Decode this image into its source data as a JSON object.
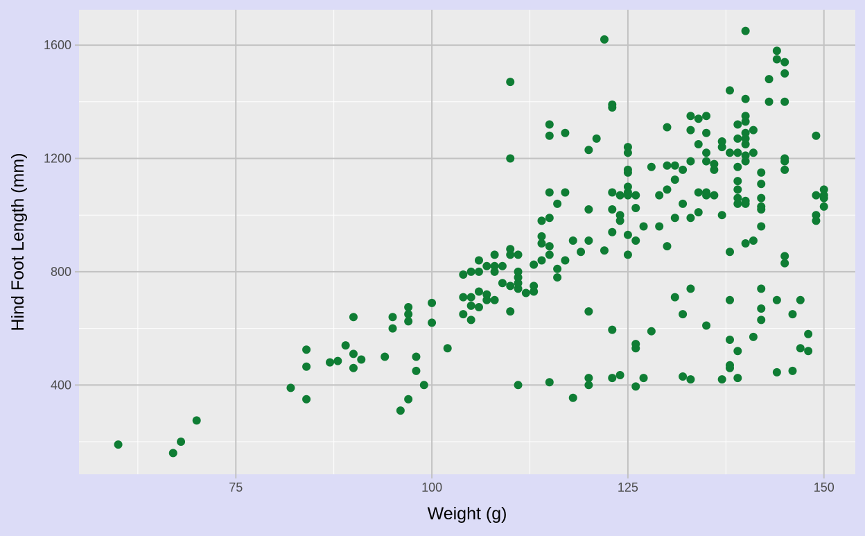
{
  "colors": {
    "page_background": "#dcdcf7",
    "panel_background": "#ebebeb",
    "grid_major": "#c2c2c2",
    "grid_minor": "#ffffff",
    "point": "#0f7d34",
    "tick_text": "#4d4d4d",
    "axis_title": "#000000"
  },
  "chart_data": {
    "type": "scatter",
    "title": "",
    "xlabel": "Weight (g)",
    "ylabel": "Hind Foot Length (mm)",
    "xlim": [
      55,
      154
    ],
    "ylim": [
      85,
      1725
    ],
    "x_ticks": [
      75,
      100,
      125,
      150
    ],
    "x_tick_labels": [
      "75",
      "100",
      "125",
      "150"
    ],
    "y_ticks": [
      400,
      800,
      1200,
      1600
    ],
    "y_tick_labels": [
      "400",
      "800",
      "1200",
      "1600"
    ],
    "x_minor": [
      62.5,
      87.5,
      112.5,
      137.5
    ],
    "y_minor": [
      200,
      600,
      1000,
      1400
    ],
    "grid": true,
    "legend": "none",
    "points": [
      [
        60,
        190
      ],
      [
        67,
        160
      ],
      [
        68,
        200
      ],
      [
        70,
        275
      ],
      [
        82,
        390
      ],
      [
        84,
        350
      ],
      [
        84,
        465
      ],
      [
        84,
        525
      ],
      [
        87,
        480
      ],
      [
        88,
        485
      ],
      [
        89,
        540
      ],
      [
        90,
        460
      ],
      [
        90,
        510
      ],
      [
        90,
        640
      ],
      [
        91,
        490
      ],
      [
        94,
        500
      ],
      [
        95,
        600
      ],
      [
        95,
        640
      ],
      [
        96,
        310
      ],
      [
        97,
        350
      ],
      [
        97,
        625
      ],
      [
        97,
        650
      ],
      [
        97,
        675
      ],
      [
        98,
        450
      ],
      [
        98,
        500
      ],
      [
        99,
        400
      ],
      [
        100,
        620
      ],
      [
        100,
        690
      ],
      [
        102,
        530
      ],
      [
        104,
        650
      ],
      [
        104,
        710
      ],
      [
        104,
        790
      ],
      [
        105,
        630
      ],
      [
        105,
        680
      ],
      [
        105,
        710
      ],
      [
        105,
        800
      ],
      [
        106,
        675
      ],
      [
        106,
        730
      ],
      [
        106,
        800
      ],
      [
        106,
        840
      ],
      [
        107,
        700
      ],
      [
        107,
        720
      ],
      [
        107,
        820
      ],
      [
        108,
        700
      ],
      [
        108,
        800
      ],
      [
        108,
        820
      ],
      [
        108,
        860
      ],
      [
        109,
        760
      ],
      [
        109,
        820
      ],
      [
        110,
        660
      ],
      [
        110,
        750
      ],
      [
        110,
        860
      ],
      [
        110,
        880
      ],
      [
        110,
        1200
      ],
      [
        110,
        1470
      ],
      [
        111,
        400
      ],
      [
        111,
        740
      ],
      [
        111,
        760
      ],
      [
        111,
        780
      ],
      [
        111,
        800
      ],
      [
        111,
        860
      ],
      [
        112,
        725
      ],
      [
        113,
        730
      ],
      [
        113,
        750
      ],
      [
        113,
        825
      ],
      [
        114,
        840
      ],
      [
        114,
        900
      ],
      [
        114,
        925
      ],
      [
        114,
        980
      ],
      [
        115,
        410
      ],
      [
        115,
        860
      ],
      [
        115,
        890
      ],
      [
        115,
        990
      ],
      [
        115,
        1080
      ],
      [
        115,
        1280
      ],
      [
        115,
        1320
      ],
      [
        116,
        780
      ],
      [
        116,
        810
      ],
      [
        116,
        1040
      ],
      [
        117,
        840
      ],
      [
        117,
        1080
      ],
      [
        117,
        1290
      ],
      [
        118,
        355
      ],
      [
        118,
        910
      ],
      [
        119,
        870
      ],
      [
        120,
        400
      ],
      [
        120,
        425
      ],
      [
        120,
        660
      ],
      [
        120,
        910
      ],
      [
        120,
        1020
      ],
      [
        120,
        1230
      ],
      [
        121,
        1270
      ],
      [
        122,
        875
      ],
      [
        122,
        1620
      ],
      [
        123,
        425
      ],
      [
        123,
        595
      ],
      [
        123,
        940
      ],
      [
        123,
        1020
      ],
      [
        123,
        1080
      ],
      [
        123,
        1380
      ],
      [
        123,
        1390
      ],
      [
        124,
        435
      ],
      [
        124,
        980
      ],
      [
        124,
        1000
      ],
      [
        124,
        1070
      ],
      [
        125,
        860
      ],
      [
        125,
        930
      ],
      [
        125,
        1070
      ],
      [
        125,
        1080
      ],
      [
        125,
        1100
      ],
      [
        125,
        1150
      ],
      [
        125,
        1160
      ],
      [
        125,
        1220
      ],
      [
        125,
        1240
      ],
      [
        126,
        395
      ],
      [
        126,
        530
      ],
      [
        126,
        545
      ],
      [
        126,
        910
      ],
      [
        126,
        1025
      ],
      [
        126,
        1070
      ],
      [
        127,
        425
      ],
      [
        127,
        960
      ],
      [
        128,
        590
      ],
      [
        128,
        1170
      ],
      [
        129,
        960
      ],
      [
        129,
        1070
      ],
      [
        130,
        890
      ],
      [
        130,
        1090
      ],
      [
        130,
        1175
      ],
      [
        130,
        1310
      ],
      [
        131,
        710
      ],
      [
        131,
        990
      ],
      [
        131,
        1125
      ],
      [
        131,
        1175
      ],
      [
        132,
        430
      ],
      [
        132,
        650
      ],
      [
        132,
        1040
      ],
      [
        132,
        1160
      ],
      [
        133,
        420
      ],
      [
        133,
        740
      ],
      [
        133,
        990
      ],
      [
        133,
        1190
      ],
      [
        133,
        1300
      ],
      [
        133,
        1350
      ],
      [
        134,
        1010
      ],
      [
        134,
        1080
      ],
      [
        134,
        1250
      ],
      [
        134,
        1340
      ],
      [
        135,
        610
      ],
      [
        135,
        1070
      ],
      [
        135,
        1080
      ],
      [
        135,
        1190
      ],
      [
        135,
        1220
      ],
      [
        135,
        1290
      ],
      [
        135,
        1350
      ],
      [
        136,
        1070
      ],
      [
        136,
        1160
      ],
      [
        136,
        1180
      ],
      [
        137,
        420
      ],
      [
        137,
        1000
      ],
      [
        137,
        1240
      ],
      [
        137,
        1260
      ],
      [
        138,
        460
      ],
      [
        138,
        470
      ],
      [
        138,
        560
      ],
      [
        138,
        700
      ],
      [
        138,
        870
      ],
      [
        138,
        1220
      ],
      [
        138,
        1440
      ],
      [
        139,
        425
      ],
      [
        139,
        520
      ],
      [
        139,
        1040
      ],
      [
        139,
        1060
      ],
      [
        139,
        1090
      ],
      [
        139,
        1120
      ],
      [
        139,
        1170
      ],
      [
        139,
        1220
      ],
      [
        139,
        1270
      ],
      [
        139,
        1320
      ],
      [
        140,
        900
      ],
      [
        140,
        1040
      ],
      [
        140,
        1050
      ],
      [
        140,
        1190
      ],
      [
        140,
        1210
      ],
      [
        140,
        1250
      ],
      [
        140,
        1270
      ],
      [
        140,
        1290
      ],
      [
        140,
        1330
      ],
      [
        140,
        1350
      ],
      [
        140,
        1410
      ],
      [
        140,
        1650
      ],
      [
        141,
        570
      ],
      [
        141,
        910
      ],
      [
        141,
        1220
      ],
      [
        141,
        1300
      ],
      [
        142,
        630
      ],
      [
        142,
        670
      ],
      [
        142,
        740
      ],
      [
        142,
        960
      ],
      [
        142,
        1020
      ],
      [
        142,
        1030
      ],
      [
        142,
        1060
      ],
      [
        142,
        1110
      ],
      [
        142,
        1150
      ],
      [
        143,
        1400
      ],
      [
        143,
        1480
      ],
      [
        144,
        445
      ],
      [
        144,
        700
      ],
      [
        144,
        1550
      ],
      [
        144,
        1580
      ],
      [
        145,
        830
      ],
      [
        145,
        855
      ],
      [
        145,
        1160
      ],
      [
        145,
        1190
      ],
      [
        145,
        1200
      ],
      [
        145,
        1400
      ],
      [
        145,
        1500
      ],
      [
        145,
        1540
      ],
      [
        146,
        450
      ],
      [
        146,
        650
      ],
      [
        147,
        530
      ],
      [
        147,
        700
      ],
      [
        148,
        520
      ],
      [
        148,
        580
      ],
      [
        149,
        980
      ],
      [
        149,
        1000
      ],
      [
        149,
        1070
      ],
      [
        149,
        1280
      ],
      [
        150,
        1030
      ],
      [
        150,
        1060
      ],
      [
        150,
        1070
      ],
      [
        150,
        1090
      ]
    ]
  }
}
